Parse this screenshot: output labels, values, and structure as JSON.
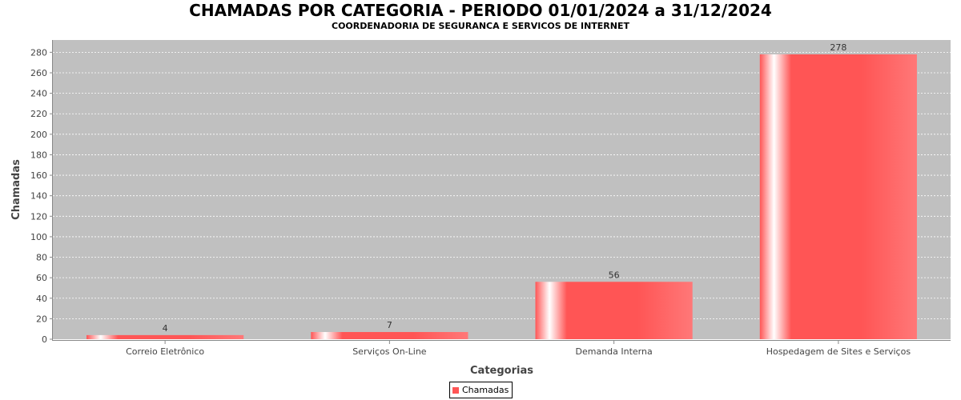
{
  "chart_data": {
    "type": "bar",
    "title": "CHAMADAS POR CATEGORIA - PERIODO 01/01/2024 a 31/12/2024",
    "subtitle": "COORDENADORIA DE SEGURANCA E SERVICOS DE INTERNET",
    "xlabel": "Categorias",
    "ylabel": "Chamadas",
    "categories": [
      "Correio Eletrônico",
      "Serviços On-Line",
      "Demanda Interna",
      "Hospedagem de Sites e Serviços"
    ],
    "series": [
      {
        "name": "Chamadas",
        "values": [
          4,
          7,
          56,
          278
        ],
        "color": "#ff5555"
      }
    ],
    "ylim": [
      0,
      292
    ],
    "yticks": [
      0,
      20,
      40,
      60,
      80,
      100,
      120,
      140,
      160,
      180,
      200,
      220,
      240,
      260,
      280
    ],
    "grid": true,
    "legend": "bottom",
    "plot_background": "#c0c0c0"
  }
}
